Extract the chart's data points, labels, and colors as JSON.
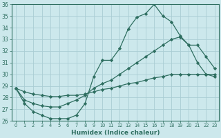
{
  "xlabel": "Humidex (Indice chaleur)",
  "ylabel": "",
  "background_color": "#cce8ec",
  "line_color": "#2e6e60",
  "grid_color": "#aacdd4",
  "xlim": [
    -0.5,
    23.5
  ],
  "ylim": [
    26,
    36
  ],
  "yticks": [
    26,
    27,
    28,
    29,
    30,
    31,
    32,
    33,
    34,
    35,
    36
  ],
  "xticks": [
    0,
    1,
    2,
    3,
    4,
    5,
    6,
    7,
    8,
    9,
    10,
    11,
    12,
    13,
    14,
    15,
    16,
    17,
    18,
    19,
    20,
    21,
    22,
    23
  ],
  "x": [
    0,
    1,
    2,
    3,
    4,
    5,
    6,
    7,
    8,
    9,
    10,
    11,
    12,
    13,
    14,
    15,
    16,
    17,
    18,
    19,
    20,
    21,
    22,
    23
  ],
  "line1": [
    28.8,
    27.5,
    26.8,
    26.5,
    26.2,
    26.2,
    26.2,
    26.5,
    27.5,
    29.8,
    31.2,
    31.2,
    32.2,
    33.9,
    34.9,
    35.2,
    36.0,
    35.0,
    34.5,
    33.3,
    32.5,
    31.0,
    30.0,
    29.8
  ],
  "line2": [
    28.8,
    27.8,
    27.5,
    27.3,
    27.2,
    27.2,
    27.5,
    27.8,
    28.2,
    28.8,
    29.2,
    29.5,
    30.0,
    30.5,
    31.0,
    31.5,
    32.0,
    32.5,
    33.0,
    33.2,
    32.5,
    32.5,
    31.5,
    30.5
  ],
  "line3": [
    28.8,
    28.5,
    28.3,
    28.2,
    28.1,
    28.1,
    28.2,
    28.2,
    28.3,
    28.5,
    28.7,
    28.8,
    29.0,
    29.2,
    29.3,
    29.5,
    29.7,
    29.8,
    30.0,
    30.0,
    30.0,
    30.0,
    30.0,
    30.0
  ]
}
